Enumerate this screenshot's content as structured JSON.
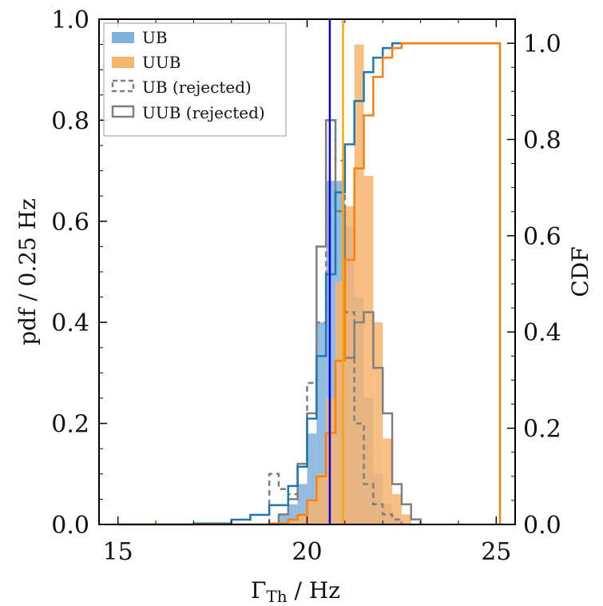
{
  "chart_data": {
    "type": "histogram",
    "xlabel": "Γ",
    "xlabel_sub": "Th",
    "xlabel_unit": " / Hz",
    "ylabel_left": "pdf / 0.25 Hz",
    "ylabel_right": "CDF",
    "xlim": [
      14.5,
      25.5
    ],
    "ylim_left": [
      0,
      1.0
    ],
    "ylim_right": [
      0,
      1.05
    ],
    "x_ticks": [
      15,
      20,
      25
    ],
    "y_ticks_left": [
      0.0,
      0.2,
      0.4,
      0.6,
      0.8,
      1.0
    ],
    "y_ticks_right": [
      0.0,
      0.2,
      0.4,
      0.6,
      0.8,
      1.0
    ],
    "grid": false,
    "legend_position": "top-left",
    "colors": {
      "UB": "#7fb2da",
      "UUB": "#f7b46f",
      "rejected": "#7f7f7f",
      "UB_cdf": "#1f77b4",
      "UUB_cdf": "#ff7f0e",
      "UB_vline": "#0000dd",
      "UUB_vline": "#ffa500"
    },
    "legend": [
      {
        "label": "UB",
        "style": "filled"
      },
      {
        "label": "UUB",
        "style": "filled"
      },
      {
        "label": "UB (rejected)",
        "style": "dashed"
      },
      {
        "label": "UUB (rejected)",
        "style": "solid"
      }
    ],
    "bin_width": 0.25,
    "bin_edges_start": 19.0,
    "series": [
      {
        "name": "UB",
        "kind": "filled",
        "values": [
          0.0,
          0.02,
          0.04,
          0.08,
          0.18,
          0.4,
          0.68,
          0.68,
          0.59,
          0.45,
          0.25,
          0.1,
          0.04,
          0.01,
          0.0,
          0.0
        ]
      },
      {
        "name": "UUB",
        "kind": "filled",
        "values": [
          0.0,
          0.0,
          0.01,
          0.02,
          0.05,
          0.1,
          0.25,
          0.48,
          0.63,
          0.95,
          0.69,
          0.4,
          0.17,
          0.06,
          0.02,
          0.0
        ]
      },
      {
        "name": "UB (rejected)",
        "kind": "step-dashed",
        "values": [
          0.1,
          0.07,
          0.06,
          0.12,
          0.28,
          0.4,
          0.8,
          0.72,
          0.42,
          0.2,
          0.08,
          0.04,
          0.02,
          0.01,
          0.0,
          0.0
        ]
      },
      {
        "name": "UUB (rejected)",
        "kind": "step-solid",
        "values": [
          0.0,
          0.02,
          0.05,
          0.12,
          0.22,
          0.55,
          0.8,
          0.62,
          0.33,
          0.4,
          0.42,
          0.31,
          0.22,
          0.08,
          0.04,
          0.01
        ]
      }
    ],
    "cdf": [
      {
        "name": "UB",
        "x": [
          15.0,
          17.0,
          18.0,
          18.5,
          19.0,
          19.5,
          19.75,
          20.0,
          20.25,
          20.5,
          20.75,
          21.0,
          21.25,
          21.5,
          21.75,
          22.0,
          22.25,
          22.5,
          25.1
        ],
        "y": [
          0.0,
          0.002,
          0.01,
          0.02,
          0.04,
          0.08,
          0.12,
          0.22,
          0.35,
          0.52,
          0.69,
          0.79,
          0.88,
          0.94,
          0.97,
          0.99,
          1.0,
          1.0,
          1.0
        ]
      },
      {
        "name": "UUB",
        "x": [
          15.0,
          19.0,
          19.5,
          19.75,
          20.0,
          20.25,
          20.5,
          20.75,
          21.0,
          21.25,
          21.5,
          21.75,
          22.0,
          22.25,
          22.5,
          25.1,
          25.1
        ],
        "y": [
          0.0,
          0.002,
          0.01,
          0.02,
          0.05,
          0.1,
          0.19,
          0.34,
          0.55,
          0.74,
          0.85,
          0.93,
          0.97,
          0.99,
          1.0,
          1.0,
          0.0
        ]
      }
    ],
    "vlines": [
      {
        "name": "UB",
        "x": 20.6
      },
      {
        "name": "UUB",
        "x": 20.95
      }
    ]
  }
}
